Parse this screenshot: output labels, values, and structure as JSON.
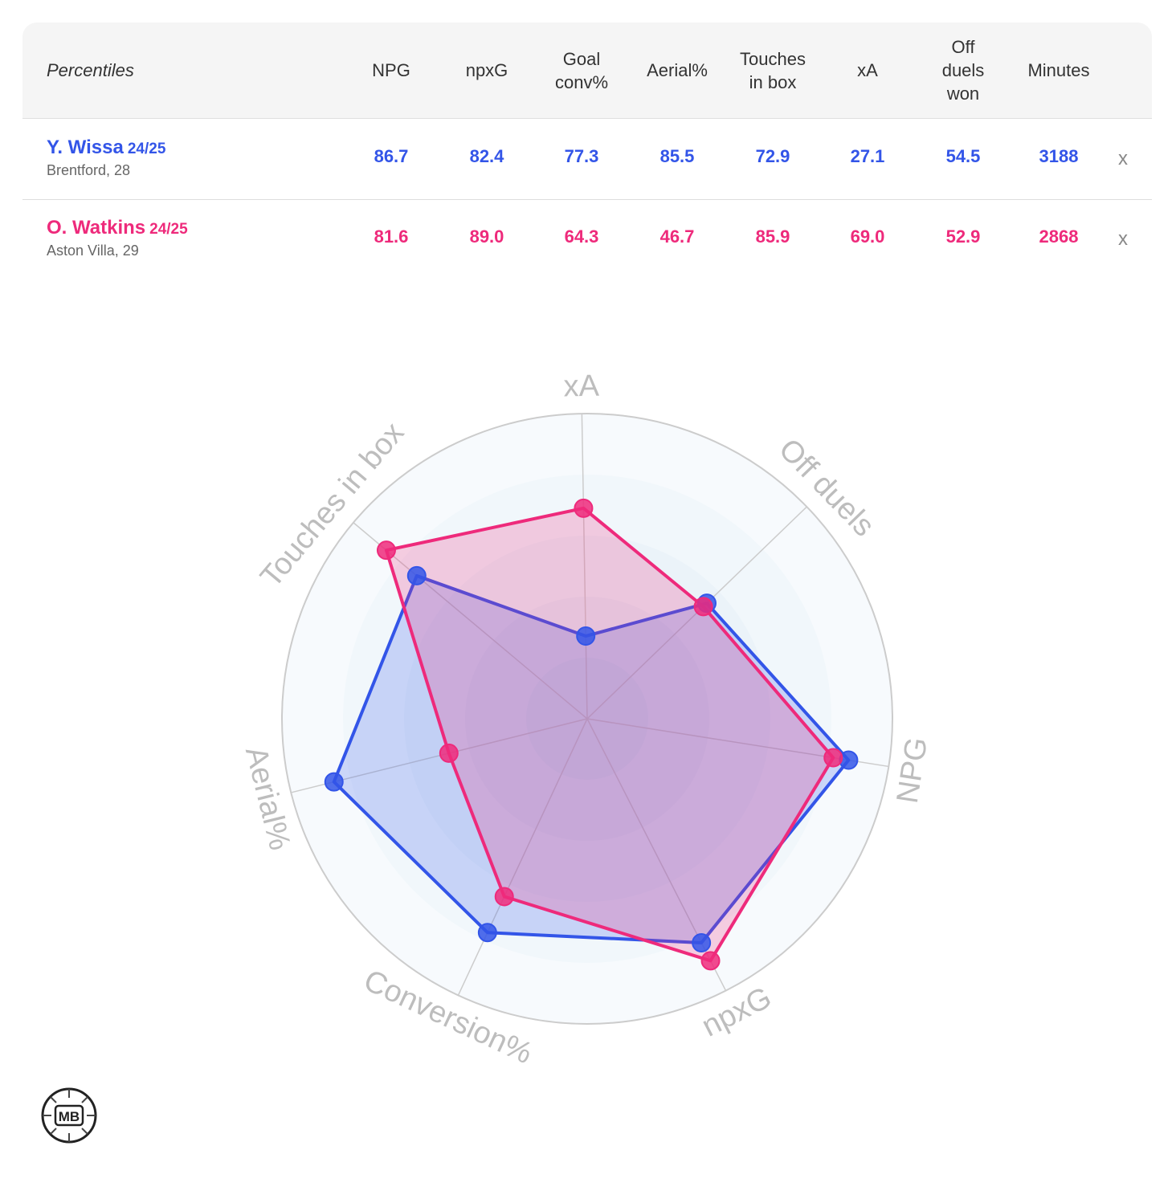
{
  "table": {
    "header_label": "Percentiles",
    "columns": [
      {
        "lines": [
          "NPG"
        ]
      },
      {
        "lines": [
          "npxG"
        ]
      },
      {
        "lines": [
          "Goal",
          "conv%"
        ]
      },
      {
        "lines": [
          "Aerial%"
        ]
      },
      {
        "lines": [
          "Touches",
          "in box"
        ]
      },
      {
        "lines": [
          "xA"
        ]
      },
      {
        "lines": [
          "Off",
          "duels",
          "won"
        ]
      },
      {
        "lines": [
          "Minutes"
        ]
      }
    ],
    "remove_label": "x"
  },
  "players": [
    {
      "name": "Y. Wissa",
      "season": "24/25",
      "info": "Brentford, 28",
      "color": "#3355e8",
      "values": [
        "86.7",
        "82.4",
        "77.3",
        "85.5",
        "72.9",
        "27.1",
        "54.5",
        "3188"
      ]
    },
    {
      "name": "O. Watkins",
      "season": "24/25",
      "info": "Aston Villa, 29",
      "color": "#ee2a7b",
      "values": [
        "81.6",
        "89.0",
        "64.3",
        "46.7",
        "85.9",
        "69.0",
        "52.9",
        "2868"
      ]
    }
  ],
  "chart_data": {
    "type": "radar",
    "axes": [
      "NPG",
      "npxG",
      "Conversion%",
      "Aerial%",
      "Touches in box",
      "xA",
      "Off duels"
    ],
    "range": [
      0,
      100
    ],
    "rings": 5,
    "series": [
      {
        "name": "Y. Wissa",
        "color": "#3355e8",
        "values": [
          86.7,
          82.4,
          77.3,
          85.5,
          72.9,
          27.1,
          54.5
        ]
      },
      {
        "name": "O. Watkins",
        "color": "#ee2a7b",
        "values": [
          81.6,
          89.0,
          64.3,
          46.7,
          85.9,
          69.0,
          52.9
        ]
      }
    ]
  },
  "logo": {
    "text": "MB"
  }
}
